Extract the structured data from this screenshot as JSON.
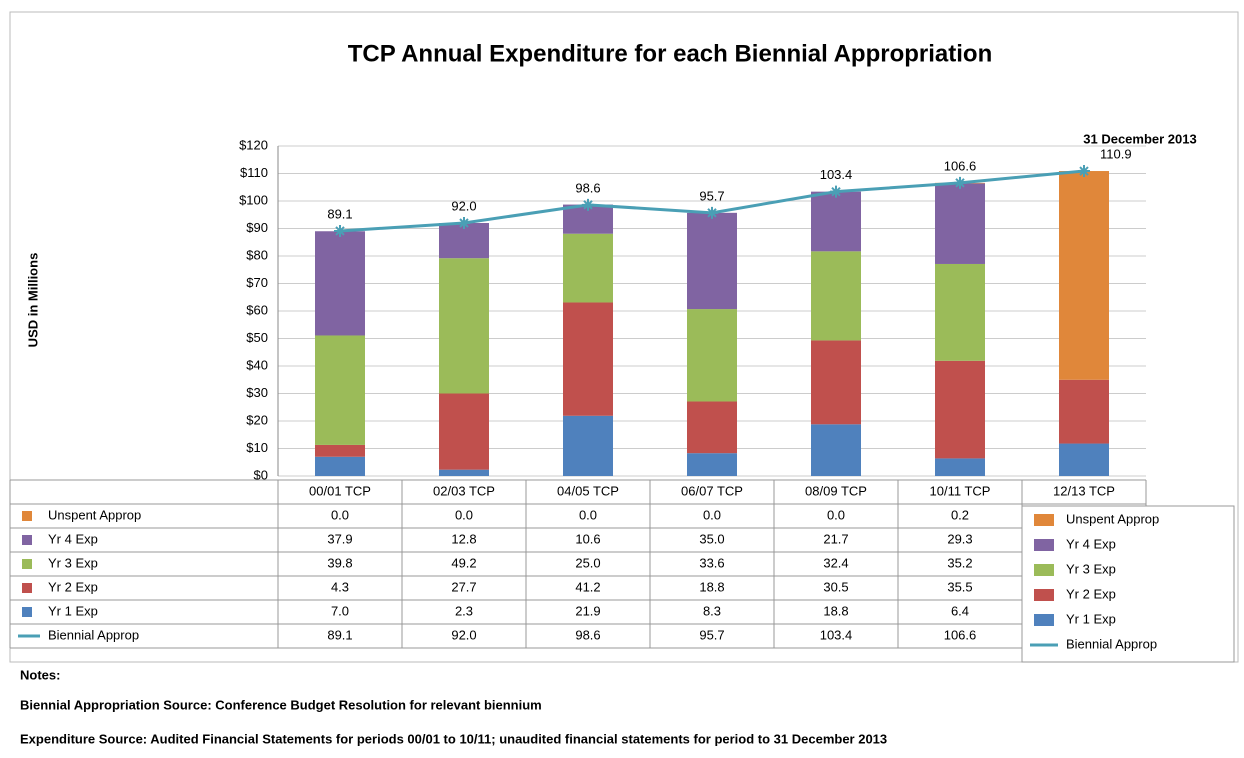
{
  "chart_data": {
    "type": "bar",
    "stacked": true,
    "title": "TCP Annual Expenditure for each Biennial Appropriation",
    "y_label": "USD in Millions",
    "annotation": "31 December 2013",
    "categories": [
      "00/01 TCP",
      "02/03 TCP",
      "04/05 TCP",
      "06/07 TCP",
      "08/09 TCP",
      "10/11 TCP",
      "12/13 TCP"
    ],
    "series": [
      {
        "name": "Yr 1 Exp",
        "color": "#4f81bd",
        "values": [
          7.0,
          2.3,
          21.9,
          8.3,
          18.8,
          6.4,
          11.8
        ],
        "value_labels": [
          "7.0",
          "2.3",
          "21.9",
          "8.3",
          "18.8",
          "6.4",
          "11.8"
        ]
      },
      {
        "name": "Yr 2 Exp",
        "color": "#c0504d",
        "values": [
          4.3,
          27.7,
          41.2,
          18.8,
          30.5,
          35.5,
          23.2
        ],
        "value_labels": [
          "4.3",
          "27.7",
          "41.2",
          "18.8",
          "30.5",
          "35.5",
          "23.2"
        ]
      },
      {
        "name": "Yr 3 Exp",
        "color": "#9bbb59",
        "values": [
          39.8,
          49.2,
          25.0,
          33.6,
          32.4,
          35.2,
          0.0
        ],
        "value_labels": [
          "39.8",
          "49.2",
          "25.0",
          "33.6",
          "32.4",
          "35.2",
          "0.0"
        ]
      },
      {
        "name": "Yr 4 Exp",
        "color": "#8064a2",
        "values": [
          37.9,
          12.8,
          10.6,
          35.0,
          21.7,
          29.3,
          0.0
        ],
        "value_labels": [
          "37.9",
          "12.8",
          "10.6",
          "35.0",
          "21.7",
          "29.3",
          "0.0"
        ]
      },
      {
        "name": "Unspent Approp",
        "color": "#e0873a",
        "values": [
          0.0,
          0.0,
          0.0,
          0.0,
          0.0,
          0.2,
          75.9
        ],
        "value_labels": [
          "0.0",
          "0.0",
          "0.0",
          "0.0",
          "0.0",
          "0.2",
          "75.9"
        ]
      },
      {
        "name": "Biennial Approp",
        "type": "line",
        "color": "#4a9fb5",
        "values": [
          89.1,
          92.0,
          98.6,
          95.7,
          103.4,
          106.6,
          110.9
        ],
        "value_labels": [
          "89.1",
          "92.0",
          "98.6",
          "95.7",
          "103.4",
          "106.6",
          "110.9"
        ]
      }
    ],
    "ylim": [
      0,
      120
    ],
    "yticks": [
      {
        "value": 0,
        "label": "$0"
      },
      {
        "value": 10,
        "label": "$10"
      },
      {
        "value": 20,
        "label": "$20"
      },
      {
        "value": 30,
        "label": "$30"
      },
      {
        "value": 40,
        "label": "$40"
      },
      {
        "value": 50,
        "label": "$50"
      },
      {
        "value": 60,
        "label": "$60"
      },
      {
        "value": 70,
        "label": "$70"
      },
      {
        "value": 80,
        "label": "$80"
      },
      {
        "value": 90,
        "label": "$90"
      },
      {
        "value": 100,
        "label": "$100"
      },
      {
        "value": 110,
        "label": "$110"
      },
      {
        "value": 120,
        "label": "$120"
      }
    ],
    "grid": true,
    "legend": "right",
    "notes": {
      "heading": "Notes:",
      "lines": [
        "Biennial Appropriation Source: Conference Budget Resolution for relevant biennium",
        "Expenditure Source: Audited Financial Statements for periods 00/01 to 10/11; unaudited financial statements for period to 31 December 2013"
      ]
    }
  }
}
